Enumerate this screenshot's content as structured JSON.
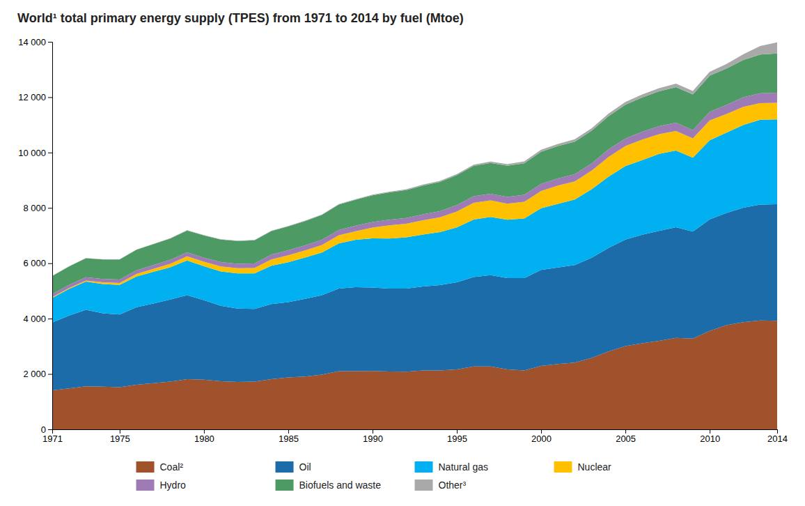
{
  "chart_data": {
    "type": "area",
    "stacked": true,
    "title": "World¹ total primary energy supply (TPES) from 1971 to 2014 by fuel (Mtoe)",
    "x": [
      1971,
      1972,
      1973,
      1974,
      1975,
      1976,
      1977,
      1978,
      1979,
      1980,
      1981,
      1982,
      1983,
      1984,
      1985,
      1986,
      1987,
      1988,
      1989,
      1990,
      1991,
      1992,
      1993,
      1994,
      1995,
      1996,
      1997,
      1998,
      1999,
      2000,
      2001,
      2002,
      2003,
      2004,
      2005,
      2006,
      2007,
      2008,
      2009,
      2010,
      2011,
      2012,
      2013,
      2014
    ],
    "series": [
      {
        "name": "Coal²",
        "color": "#a0522d",
        "values": [
          1407,
          1482,
          1554,
          1545,
          1526,
          1614,
          1668,
          1722,
          1810,
          1793,
          1737,
          1715,
          1724,
          1813,
          1876,
          1910,
          1976,
          2103,
          2102,
          2111,
          2092,
          2084,
          2126,
          2127,
          2167,
          2270,
          2270,
          2165,
          2125,
          2293,
          2358,
          2414,
          2578,
          2814,
          3009,
          3107,
          3196,
          3306,
          3278,
          3555,
          3762,
          3874,
          3937,
          3924
        ]
      },
      {
        "name": "Oil",
        "color": "#1b6ca8",
        "values": [
          2450,
          2627,
          2762,
          2649,
          2621,
          2796,
          2876,
          2970,
          3040,
          2873,
          2726,
          2649,
          2623,
          2710,
          2720,
          2808,
          2870,
          2981,
          3034,
          3012,
          2996,
          3001,
          3034,
          3083,
          3148,
          3232,
          3304,
          3297,
          3337,
          3467,
          3488,
          3523,
          3624,
          3742,
          3847,
          3924,
          3973,
          3999,
          3868,
          4028,
          4058,
          4134,
          4185,
          4211
        ]
      },
      {
        "name": "Natural gas",
        "color": "#00b0f0",
        "values": [
          892,
          964,
          1019,
          1059,
          1069,
          1113,
          1147,
          1165,
          1248,
          1224,
          1242,
          1268,
          1284,
          1385,
          1440,
          1487,
          1546,
          1634,
          1710,
          1774,
          1803,
          1853,
          1879,
          1916,
          1979,
          2076,
          2097,
          2108,
          2157,
          2227,
          2300,
          2364,
          2475,
          2573,
          2657,
          2695,
          2782,
          2770,
          2671,
          2858,
          2902,
          2987,
          3066,
          3065
        ]
      },
      {
        "name": "Nuclear",
        "color": "#ffc000",
        "values": [
          29,
          34,
          44,
          60,
          72,
          95,
          109,
          122,
          150,
          163,
          181,
          191,
          197,
          231,
          254,
          257,
          270,
          294,
          312,
          394,
          481,
          488,
          516,
          532,
          577,
          607,
          598,
          583,
          601,
          625,
          660,
          655,
          669,
          710,
          722,
          745,
          710,
          703,
          697,
          719,
          675,
          659,
          599,
          594
        ]
      },
      {
        "name": "Hydro",
        "color": "#9e7bb5",
        "values": [
          104,
          109,
          116,
          120,
          125,
          131,
          135,
          143,
          147,
          147,
          155,
          159,
          167,
          177,
          181,
          183,
          188,
          192,
          199,
          202,
          204,
          207,
          214,
          222,
          229,
          237,
          240,
          244,
          252,
          256,
          259,
          265,
          261,
          276,
          274,
          281,
          295,
          300,
          295,
          311,
          322,
          342,
          355,
          366
        ]
      },
      {
        "name": "Biofuels and waste",
        "color": "#4e9a65",
        "values": [
          656,
          672,
          689,
          706,
          724,
          740,
          757,
          773,
          789,
          806,
          814,
          823,
          834,
          848,
          862,
          879,
          896,
          919,
          942,
          963,
          988,
          1013,
          1040,
          1060,
          1082,
          1099,
          1114,
          1128,
          1141,
          1161,
          1169,
          1174,
          1182,
          1198,
          1220,
          1238,
          1256,
          1285,
          1292,
          1305,
          1320,
          1352,
          1399,
          1421
        ]
      },
      {
        "name": "Other³",
        "color": "#a9a9a9",
        "values": [
          5,
          6,
          6,
          7,
          7,
          8,
          8,
          9,
          9,
          10,
          11,
          12,
          12,
          13,
          14,
          15,
          16,
          17,
          19,
          21,
          25,
          31,
          35,
          37,
          40,
          43,
          50,
          59,
          67,
          73,
          79,
          86,
          88,
          95,
          101,
          108,
          115,
          126,
          126,
          140,
          162,
          206,
          305,
          399
        ]
      }
    ],
    "xlim": [
      1971,
      2014
    ],
    "xticks": [
      1971,
      1975,
      1980,
      1985,
      1990,
      1995,
      2000,
      2005,
      2010,
      2014
    ],
    "ylim": [
      0,
      14000
    ],
    "yticks": [
      0,
      {
        "value": 2000,
        "label": "2 000"
      },
      {
        "value": 4000,
        "label": "4 000"
      },
      {
        "value": 6000,
        "label": "6 000"
      },
      {
        "value": 8000,
        "label": "8 000"
      },
      {
        "value": 10000,
        "label": "10 000"
      },
      {
        "value": 12000,
        "label": "12 000"
      },
      {
        "value": 14000,
        "label": "14 000"
      }
    ],
    "grid": false,
    "legend": "bottom"
  }
}
